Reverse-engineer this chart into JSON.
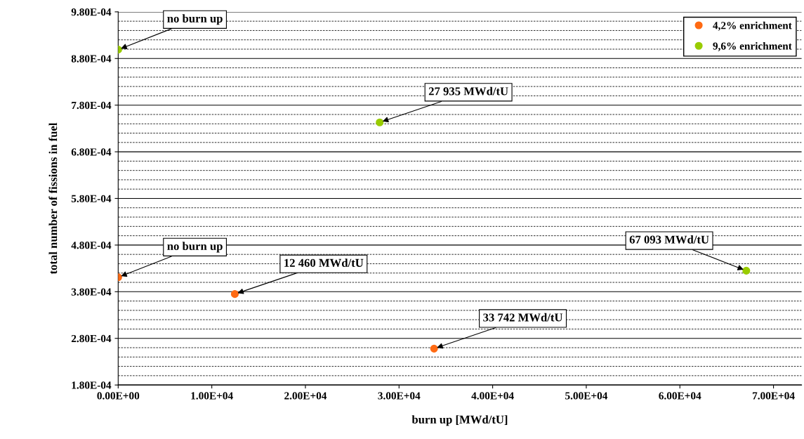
{
  "chart_data": {
    "type": "scatter",
    "xlabel": "burn up [MWd/tU]",
    "ylabel": "total number of fissions in fuel",
    "series": [
      {
        "name": "4,2% enrichment",
        "color": "#ff6a13",
        "x": [
          0,
          12460,
          33742
        ],
        "values": [
          0.000411,
          0.000375,
          0.000258
        ]
      },
      {
        "name": "9,6% enrichment",
        "color": "#99cc00",
        "x": [
          0,
          27935,
          67093
        ],
        "values": [
          0.000899,
          0.000743,
          0.000425
        ]
      }
    ],
    "xlim": [
      0,
      73000
    ],
    "xticks": [
      {
        "value": 0,
        "label": "0.00E+00"
      },
      {
        "value": 10000,
        "label": "1.00E+04"
      },
      {
        "value": 20000,
        "label": "2.00E+04"
      },
      {
        "value": 30000,
        "label": "3.00E+04"
      },
      {
        "value": 40000,
        "label": "4.00E+04"
      },
      {
        "value": 50000,
        "label": "5.00E+04"
      },
      {
        "value": 60000,
        "label": "6.00E+04"
      },
      {
        "value": 70000,
        "label": "7.00E+04"
      }
    ],
    "ylim": [
      0.00018,
      0.00098
    ],
    "yticks": [
      {
        "value": 0.00018,
        "label": "1.80E-04"
      },
      {
        "value": 0.00028,
        "label": "2.80E-04"
      },
      {
        "value": 0.00038,
        "label": "3.80E-04"
      },
      {
        "value": 0.00048,
        "label": "4.80E-04"
      },
      {
        "value": 0.00058,
        "label": "5.80E-04"
      },
      {
        "value": 0.00068,
        "label": "6.80E-04"
      },
      {
        "value": 0.00078,
        "label": "7.80E-04"
      },
      {
        "value": 0.00088,
        "label": "8.80E-04"
      },
      {
        "value": 0.00098,
        "label": "9.80E-04"
      }
    ],
    "grid": "y",
    "legend": "top right",
    "marker": "circle",
    "annotations": [
      {
        "text": "no burn up",
        "x": 0,
        "y": 0.000899
      },
      {
        "text": "27 935 MWd/tU",
        "x": 27935,
        "y": 0.000743
      },
      {
        "text": "no burn up",
        "x": 0,
        "y": 0.000411
      },
      {
        "text": "12 460 MWd/tU",
        "x": 12460,
        "y": 0.000375
      },
      {
        "text": "33 742 MWd/tU",
        "x": 33742,
        "y": 0.000258
      },
      {
        "text": "67 093 MWd/tU",
        "x": 67093,
        "y": 0.000425
      }
    ]
  }
}
